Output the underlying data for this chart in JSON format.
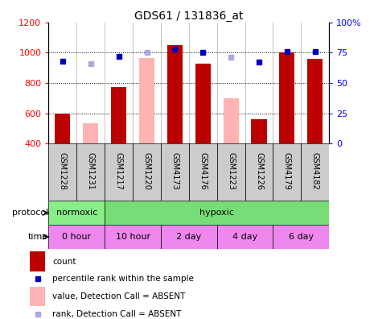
{
  "title": "GDS61 / 131836_at",
  "samples": [
    "GSM1228",
    "GSM1231",
    "GSM1217",
    "GSM1220",
    "GSM4173",
    "GSM4176",
    "GSM1223",
    "GSM1226",
    "GSM4179",
    "GSM4182"
  ],
  "count_values": [
    600,
    null,
    775,
    null,
    1050,
    930,
    null,
    558,
    1000,
    960
  ],
  "count_absent": [
    null,
    533,
    null,
    963,
    null,
    null,
    700,
    null,
    null,
    null
  ],
  "rank_values": [
    68,
    null,
    72,
    null,
    78,
    75,
    null,
    67,
    76,
    76
  ],
  "rank_absent": [
    null,
    66,
    null,
    75,
    null,
    null,
    71,
    null,
    null,
    null
  ],
  "ylim_left": [
    400,
    1200
  ],
  "ylim_right": [
    0,
    100
  ],
  "yticks_left": [
    400,
    600,
    800,
    1000,
    1200
  ],
  "yticks_right": [
    0,
    25,
    50,
    75,
    100
  ],
  "bar_color_present": "#BB0000",
  "bar_color_absent": "#FFB3B3",
  "rank_color_present": "#0000BB",
  "rank_color_absent": "#AAAADD",
  "bar_width": 0.55,
  "protocol_normoxic_color": "#88EE88",
  "protocol_hypoxic_color": "#77DD77",
  "time_color": "#EE88EE",
  "sample_box_color": "#CCCCCC",
  "legend_items": [
    {
      "label": "count",
      "color": "#BB0000",
      "type": "rect"
    },
    {
      "label": "percentile rank within the sample",
      "color": "#0000BB",
      "type": "square"
    },
    {
      "label": "value, Detection Call = ABSENT",
      "color": "#FFB3B3",
      "type": "rect"
    },
    {
      "label": "rank, Detection Call = ABSENT",
      "color": "#AAAADD",
      "type": "square"
    }
  ]
}
